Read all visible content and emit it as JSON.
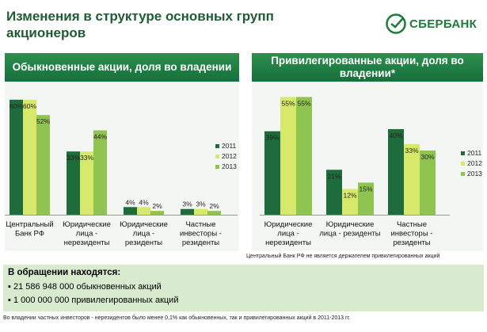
{
  "slide": {
    "title": "Изменения в структуре основных групп акционеров",
    "logo_text": "СБЕРБАНК",
    "footnote_preferred": "Центральный Банк РФ не является держателем привилегированных акций",
    "box_title": "В обращении находятся:",
    "box_items": [
      "21 586 948 000 обыкновенных акций",
      "1 000 000 000 привилегированных акций"
    ],
    "bottom_note": "Во владении частных инвесторов - нерезидентов было менее 0,1% как обыкновенных, так и привилегированных акций в 2011-2013 гг.",
    "colors": {
      "2011": "#1e6b3c",
      "2012": "#d6e96a",
      "2013": "#8fc450",
      "brand": "#1f7a3b"
    }
  },
  "chart_data": [
    {
      "type": "bar",
      "title": "Обыкновенные акции, доля во владении",
      "categories": [
        [
          "Центральный",
          "Банк РФ"
        ],
        [
          "Юридические",
          "лица -",
          "нерезиденты"
        ],
        [
          "Юридические",
          "лица -",
          "резиденты"
        ],
        [
          "Частные",
          "инвесторы -",
          "резиденты"
        ]
      ],
      "series": [
        {
          "name": "2011",
          "values": [
            60,
            33,
            4,
            3
          ],
          "labels": [
            "60%",
            "33%",
            "4%",
            "3%"
          ]
        },
        {
          "name": "2012",
          "values": [
            60,
            33,
            4,
            3
          ],
          "labels": [
            "60%",
            "33%",
            "4%",
            "3%"
          ]
        },
        {
          "name": "2013",
          "values": [
            52,
            44,
            2,
            2
          ],
          "labels": [
            "52%",
            "44%",
            "2%",
            "2%"
          ]
        }
      ],
      "ylim": [
        0,
        62
      ],
      "legend": "right"
    },
    {
      "type": "bar",
      "title": "Привилегированные акции, доля во владении*",
      "categories": [
        [
          "Юридические",
          "лица -",
          "нерезиденты"
        ],
        [
          "Юридические",
          "лица - резиденты"
        ],
        [
          "Частные",
          "инвесторы -",
          "резиденты"
        ]
      ],
      "series": [
        {
          "name": "2011",
          "values": [
            39,
            21,
            40
          ],
          "labels": [
            "39%",
            "21%",
            "40%"
          ]
        },
        {
          "name": "2012",
          "values": [
            55,
            12,
            33
          ],
          "labels": [
            "55%",
            "12%",
            "33%"
          ]
        },
        {
          "name": "2013",
          "values": [
            55,
            15,
            30
          ],
          "labels": [
            "55%",
            "15%",
            "30%"
          ]
        }
      ],
      "ylim": [
        0,
        57
      ],
      "legend": "right"
    }
  ]
}
